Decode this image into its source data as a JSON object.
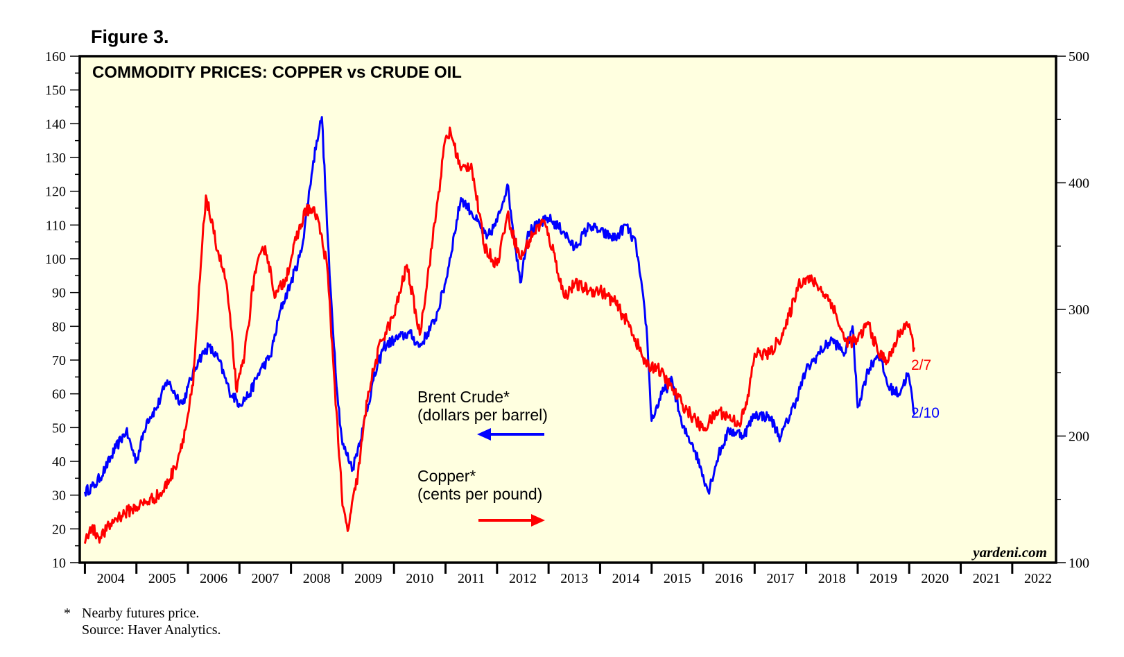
{
  "figure_label": "Figure 3.",
  "footnote": {
    "marker": "*",
    "text": "Nearby futures price."
  },
  "source": "Source: Haver Analytics.",
  "colors": {
    "brent": "#0000ff",
    "copper": "#ff0000",
    "plot_bg": "#ffffe0",
    "frame": "#000000"
  },
  "chart_data": {
    "type": "line",
    "title": "COMMODITY PRICES: COPPER vs CRUDE OIL",
    "watermark": "yardeni.com",
    "x_range": [
      2003.9,
      2022.85
    ],
    "x_tick_labels": [
      "2004",
      "2005",
      "2006",
      "2007",
      "2008",
      "2009",
      "2010",
      "2011",
      "2012",
      "2013",
      "2014",
      "2015",
      "2016",
      "2017",
      "2018",
      "2019",
      "2020",
      "2021",
      "2022"
    ],
    "y_left": {
      "min": 10,
      "max": 160,
      "ticks": [
        10,
        20,
        30,
        40,
        50,
        60,
        70,
        80,
        90,
        100,
        110,
        120,
        130,
        140,
        150,
        160
      ]
    },
    "y_right": {
      "min": 100,
      "max": 500,
      "ticks": [
        100,
        200,
        300,
        400,
        500
      ]
    },
    "annotations": {
      "brent_line1": "Brent Crude*",
      "brent_line2": "(dollars per barrel)",
      "copper_line1": "Copper*",
      "copper_line2": "(cents per pound)",
      "brent_end": "2/10",
      "copper_end": "2/7"
    },
    "series": [
      {
        "name": "Brent Crude",
        "axis": "left",
        "color": "#0000ff",
        "x": [
          2004.0,
          2004.2,
          2004.4,
          2004.6,
          2004.8,
          2005.0,
          2005.2,
          2005.4,
          2005.6,
          2005.75,
          2005.9,
          2006.0,
          2006.2,
          2006.4,
          2006.6,
          2006.8,
          2007.0,
          2007.2,
          2007.4,
          2007.6,
          2007.8,
          2008.0,
          2008.2,
          2008.4,
          2008.5,
          2008.6,
          2008.75,
          2008.9,
          2009.0,
          2009.2,
          2009.4,
          2009.6,
          2009.8,
          2010.0,
          2010.3,
          2010.5,
          2010.8,
          2011.0,
          2011.3,
          2011.5,
          2011.8,
          2012.0,
          2012.2,
          2012.45,
          2012.6,
          2012.8,
          2013.0,
          2013.3,
          2013.5,
          2013.8,
          2014.0,
          2014.3,
          2014.5,
          2014.7,
          2014.9,
          2015.0,
          2015.2,
          2015.4,
          2015.6,
          2015.8,
          2016.0,
          2016.1,
          2016.3,
          2016.5,
          2016.8,
          2017.0,
          2017.3,
          2017.5,
          2017.8,
          2018.0,
          2018.3,
          2018.5,
          2018.75,
          2018.9,
          2019.0,
          2019.2,
          2019.4,
          2019.6,
          2019.8,
          2019.98,
          2020.1
        ],
        "y": [
          31,
          33,
          38,
          44,
          49,
          40,
          52,
          56,
          64,
          60,
          57,
          62,
          70,
          74,
          70,
          61,
          57,
          60,
          67,
          71,
          85,
          93,
          102,
          125,
          135,
          142,
          95,
          60,
          45,
          38,
          50,
          64,
          74,
          76,
          78,
          74,
          82,
          93,
          118,
          114,
          106,
          111,
          122,
          93,
          108,
          110,
          112,
          108,
          103,
          110,
          108,
          106,
          110,
          104,
          80,
          52,
          60,
          64,
          50,
          45,
          36,
          31,
          42,
          49,
          48,
          54,
          53,
          47,
          58,
          67,
          73,
          76,
          72,
          80,
          56,
          67,
          72,
          62,
          60,
          66,
          54
        ]
      },
      {
        "name": "Copper",
        "axis": "right",
        "color": "#ff0000",
        "x": [
          2004.0,
          2004.1,
          2004.3,
          2004.6,
          2004.9,
          2005.2,
          2005.5,
          2005.75,
          2005.95,
          2006.1,
          2006.25,
          2006.35,
          2006.5,
          2006.75,
          2006.95,
          2007.1,
          2007.3,
          2007.5,
          2007.7,
          2007.9,
          2008.1,
          2008.3,
          2008.5,
          2008.7,
          2008.85,
          2009.0,
          2009.1,
          2009.3,
          2009.5,
          2009.75,
          2010.0,
          2010.25,
          2010.5,
          2010.75,
          2011.0,
          2011.1,
          2011.3,
          2011.5,
          2011.75,
          2012.0,
          2012.2,
          2012.45,
          2012.7,
          2012.9,
          2013.1,
          2013.3,
          2013.5,
          2013.8,
          2014.0,
          2014.3,
          2014.6,
          2014.9,
          2015.1,
          2015.35,
          2015.6,
          2015.8,
          2016.0,
          2016.3,
          2016.5,
          2016.7,
          2016.85,
          2017.0,
          2017.3,
          2017.6,
          2017.85,
          2018.0,
          2018.2,
          2018.5,
          2018.75,
          2019.0,
          2019.2,
          2019.4,
          2019.6,
          2019.8,
          2019.95,
          2020.1
        ],
        "y": [
          115,
          128,
          120,
          135,
          142,
          148,
          155,
          175,
          205,
          240,
          335,
          390,
          360,
          320,
          235,
          265,
          330,
          350,
          310,
          325,
          355,
          380,
          375,
          335,
          240,
          145,
          125,
          170,
          235,
          275,
          295,
          335,
          280,
          355,
          435,
          440,
          410,
          415,
          350,
          335,
          375,
          340,
          360,
          370,
          345,
          310,
          320,
          315,
          315,
          305,
          285,
          255,
          255,
          240,
          225,
          215,
          205,
          220,
          215,
          210,
          225,
          265,
          265,
          285,
          320,
          325,
          320,
          305,
          275,
          275,
          290,
          265,
          260,
          280,
          290,
          270
        ]
      }
    ]
  }
}
